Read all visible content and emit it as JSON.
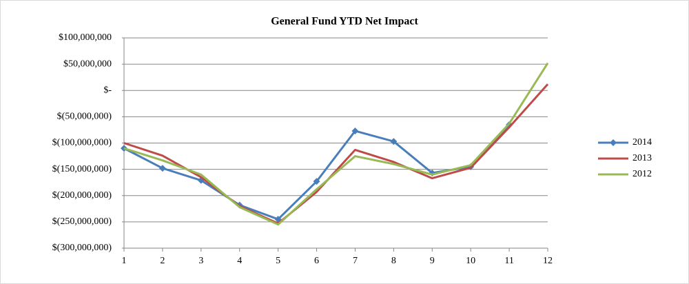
{
  "chart_data": {
    "type": "line",
    "title": "General Fund YTD Net Impact",
    "categories": [
      "1",
      "2",
      "3",
      "4",
      "5",
      "6",
      "7",
      "8",
      "9",
      "10",
      "11",
      "12"
    ],
    "series": [
      {
        "name": "2014",
        "color": "#4a7ebb",
        "marker": "diamond",
        "values": [
          -110000000,
          -148000000,
          -171000000,
          -218000000,
          -245000000,
          -173000000,
          -77000000,
          -97000000,
          -157000000,
          -145000000,
          -65000000,
          null
        ]
      },
      {
        "name": "2013",
        "color": "#be4b48",
        "values": [
          -100000000,
          -124000000,
          -165000000,
          -220000000,
          -253000000,
          -193000000,
          -113000000,
          -136000000,
          -167000000,
          -147000000,
          -70000000,
          12000000
        ]
      },
      {
        "name": "2012",
        "color": "#98b954",
        "values": [
          -110000000,
          -133000000,
          -160000000,
          -222000000,
          -255000000,
          -188000000,
          -125000000,
          -140000000,
          -160000000,
          -142000000,
          -63000000,
          52000000
        ]
      }
    ],
    "ylim": [
      -300000000,
      100000000
    ],
    "yticks": [
      {
        "value": -300000000,
        "label": "$(300,000,000)"
      },
      {
        "value": -250000000,
        "label": "$(250,000,000)"
      },
      {
        "value": -200000000,
        "label": "$(200,000,000)"
      },
      {
        "value": -150000000,
        "label": "$(150,000,000)"
      },
      {
        "value": -100000000,
        "label": "$(100,000,000)"
      },
      {
        "value": -50000000,
        "label": "$(50,000,000)"
      },
      {
        "value": 0,
        "label": "$-"
      },
      {
        "value": 50000000,
        "label": "$50,000,000"
      },
      {
        "value": 100000000,
        "label": "$100,000,000"
      }
    ],
    "grid": true,
    "legend": "right"
  }
}
